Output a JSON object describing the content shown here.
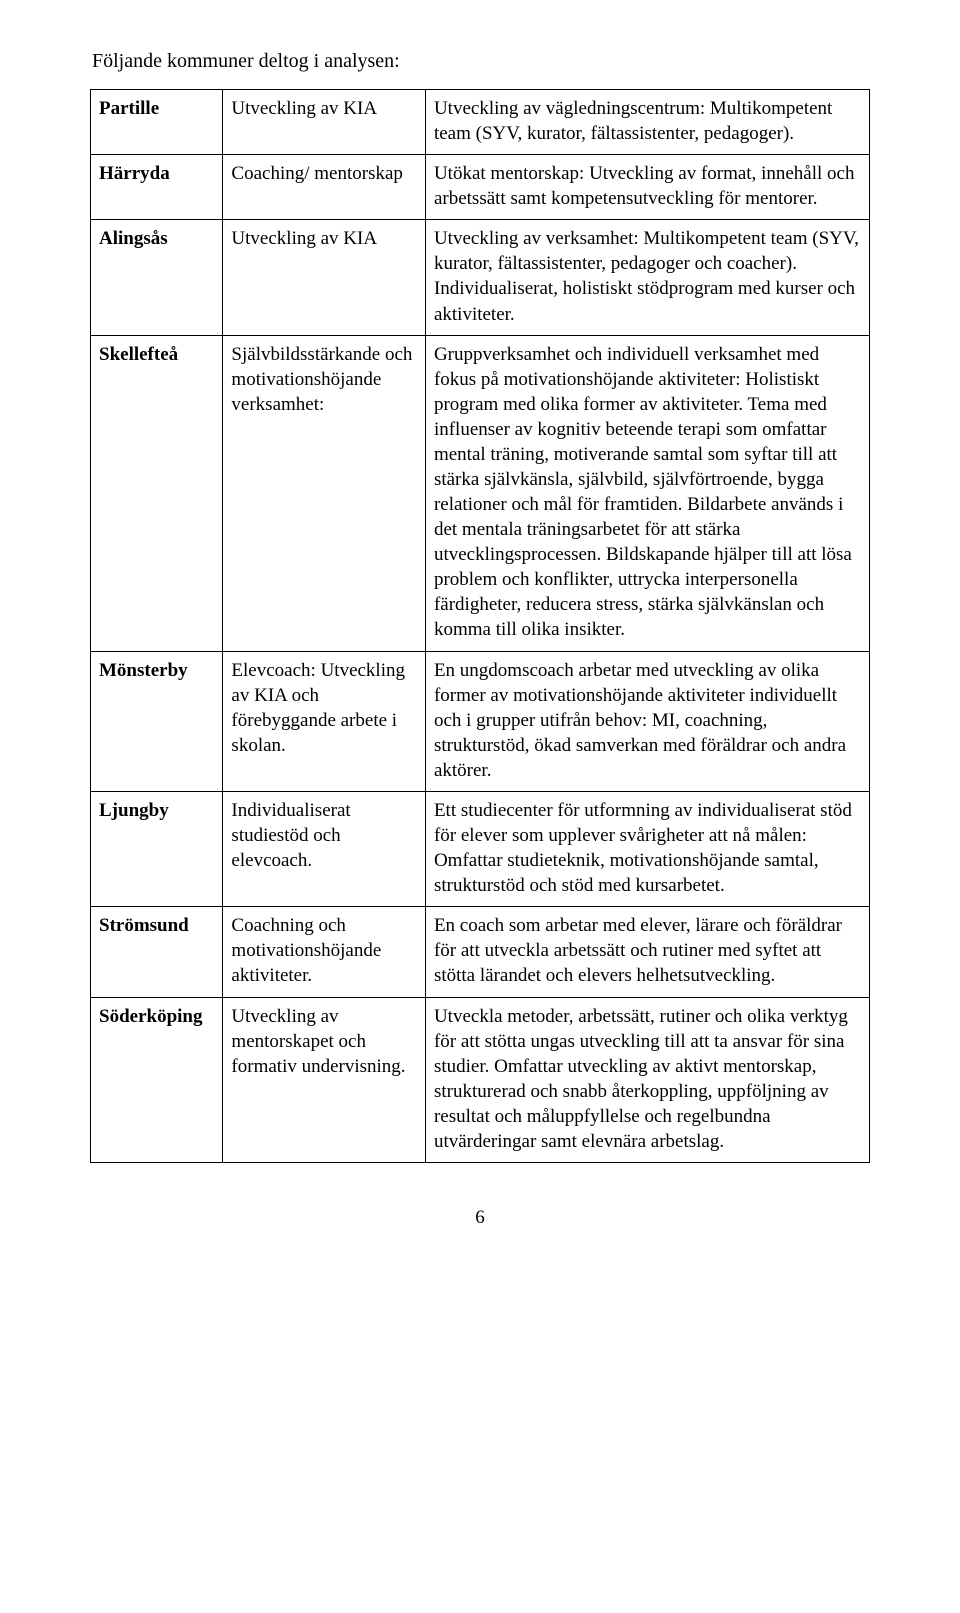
{
  "intro": "Följande kommuner deltog i analysen:",
  "rows": [
    {
      "name": "Partille",
      "col2": "Utveckling av KIA",
      "col3": "Utveckling av vägledningscentrum: Multikompetent team (SYV, kurator, fältassistenter, pedagoger)."
    },
    {
      "name": "Härryda",
      "col2": "Coaching/ mentorskap",
      "col3": "Utökat mentorskap: Utveckling av format, innehåll och arbetssätt samt kompetensutveckling för mentorer."
    },
    {
      "name": "Alingsås",
      "col2": "Utveckling av KIA",
      "col3": "Utveckling av verksamhet: Multikompetent team (SYV, kurator, fältassistenter, pedagoger och coacher). Individualiserat, holistiskt stödprogram med kurser och aktiviteter."
    },
    {
      "name": "Skellefteå",
      "col2": "Självbildsstärkande och motivationshöjande verksamhet:",
      "col3": "Gruppverksamhet och individuell verksamhet med fokus på motivationshöjande aktiviteter: Holistiskt program med olika former av aktiviteter. Tema med influenser av kognitiv beteende terapi som omfattar mental träning, motiverande samtal som syftar till att stärka självkänsla, självbild, självförtroende, bygga relationer och mål för framtiden. Bildarbete används i det mentala träningsarbetet för att stärka utvecklingsprocessen. Bildskapande hjälper till att lösa problem och konflikter, uttrycka interpersonella färdigheter, reducera stress, stärka självkänslan och komma till olika insikter."
    },
    {
      "name": "Mönsterby",
      "col2": "Elevcoach: Utveckling av KIA och förebyggande arbete i skolan.",
      "col3": "En ungdomscoach arbetar med utveckling av olika former av motivationshöjande aktiviteter individuellt och i grupper utifrån behov: MI, coachning, strukturstöd, ökad samverkan med föräldrar och andra aktörer."
    },
    {
      "name": "Ljungby",
      "col2": "Individualiserat studiestöd och elevcoach.",
      "col3": "Ett studiecenter för utformning av individualiserat stöd för elever som upplever svårigheter att nå målen: Omfattar studieteknik, motivationshöjande samtal, strukturstöd och stöd med kursarbetet."
    },
    {
      "name": "Strömsund",
      "col2": "Coachning och motivationshöjande aktiviteter.",
      "col3": "En coach som arbetar med elever, lärare och föräldrar för att utveckla arbetssätt och rutiner med syftet att stötta lärandet och elevers helhetsutveckling."
    },
    {
      "name": "Söderköping",
      "col2": "Utveckling av mentorskapet och formativ undervisning.",
      "col3": "Utveckla metoder, arbetssätt, rutiner och olika verktyg för att stötta ungas utveckling till att ta ansvar för sina studier. Omfattar utveckling av aktivt mentorskap, strukturerad och snabb återkoppling, uppföljning av resultat och måluppfyllelse och regelbundna utvärderingar samt elevnära arbetslag."
    }
  ],
  "pageNumber": "6"
}
